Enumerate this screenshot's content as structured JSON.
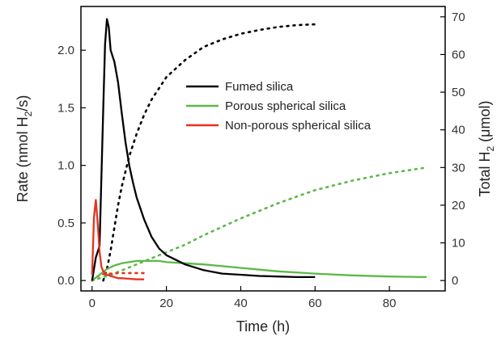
{
  "chart_data": {
    "type": "line",
    "title": "",
    "xlabel": "Time (h)",
    "ylabel_left": {
      "main": "Rate (nmol H",
      "sub": "2",
      "tail": "/s)"
    },
    "ylabel_right": {
      "main": "Total H",
      "sub": "2",
      "tail": " (μmol)"
    },
    "xlim": [
      -3,
      95
    ],
    "ylim_left": [
      -0.09,
      2.38
    ],
    "ylim_right": [
      -2.75,
      72.75
    ],
    "xticks": [
      0,
      20,
      40,
      60,
      80
    ],
    "yticks_left": [
      0.0,
      0.5,
      1.0,
      1.5,
      2.0
    ],
    "yticks_right": [
      0,
      10,
      20,
      30,
      40,
      50,
      60,
      70
    ],
    "grid": false,
    "legend_position": "center",
    "colors": {
      "fumed": "#000000",
      "porous": "#5cb848",
      "nonporous": "#e8321f"
    },
    "series": [
      {
        "name": "Fumed silica",
        "kind": "rate",
        "style": "solid",
        "axis": "left",
        "color": "#000000",
        "x": [
          0,
          1,
          2,
          3,
          3.5,
          4,
          4.5,
          5,
          6,
          7,
          8,
          9,
          10,
          11,
          12,
          14,
          16,
          18,
          20,
          25,
          30,
          35,
          40,
          45,
          50,
          55,
          60
        ],
        "y": [
          0.0,
          0.2,
          0.3,
          1.5,
          2.05,
          2.27,
          2.2,
          2.0,
          1.9,
          1.72,
          1.45,
          1.2,
          1.0,
          0.85,
          0.72,
          0.53,
          0.38,
          0.28,
          0.22,
          0.14,
          0.09,
          0.06,
          0.05,
          0.04,
          0.035,
          0.03,
          0.03
        ]
      },
      {
        "name": "Porous spherical silica",
        "kind": "rate",
        "style": "solid",
        "axis": "left",
        "color": "#5cb848",
        "x": [
          0,
          2,
          4,
          6,
          8,
          10,
          12,
          15,
          18,
          20,
          25,
          30,
          40,
          50,
          60,
          70,
          80,
          90
        ],
        "y": [
          0.0,
          0.05,
          0.1,
          0.13,
          0.15,
          0.16,
          0.17,
          0.17,
          0.17,
          0.16,
          0.15,
          0.14,
          0.11,
          0.08,
          0.06,
          0.045,
          0.035,
          0.03
        ]
      },
      {
        "name": "Non-porous spherical silica",
        "kind": "rate",
        "style": "solid",
        "axis": "left",
        "color": "#e8321f",
        "x": [
          0,
          0.5,
          1,
          1.5,
          2,
          2.5,
          3,
          4,
          5,
          6,
          7,
          8,
          10,
          12,
          14
        ],
        "y": [
          0.05,
          0.55,
          0.7,
          0.5,
          0.25,
          0.12,
          0.08,
          0.05,
          0.04,
          0.03,
          0.02,
          0.02,
          0.015,
          0.01,
          0.01
        ]
      },
      {
        "kind": "total",
        "style": "dotted",
        "axis": "right",
        "color": "#000000",
        "x": [
          3,
          4,
          5,
          6,
          7,
          8,
          9,
          10,
          12,
          14,
          16,
          18,
          20,
          25,
          30,
          35,
          40,
          45,
          50,
          55,
          60
        ],
        "y": [
          0,
          3,
          8,
          14,
          20,
          25,
          29,
          33,
          39,
          44,
          48,
          51,
          54,
          58.5,
          62,
          64,
          65.5,
          66.5,
          67.3,
          67.8,
          68
        ]
      },
      {
        "kind": "total",
        "style": "dotted",
        "axis": "right",
        "color": "#5cb848",
        "x": [
          0,
          5,
          10,
          15,
          20,
          25,
          30,
          40,
          50,
          60,
          70,
          80,
          90
        ],
        "y": [
          0,
          1.5,
          3.5,
          5.5,
          7.5,
          9.5,
          12,
          16.5,
          20.5,
          24,
          26.5,
          28.5,
          30
        ]
      },
      {
        "kind": "total",
        "style": "dotted",
        "axis": "right",
        "color": "#e8321f",
        "x": [
          0,
          1,
          2,
          3,
          4,
          6,
          8,
          10,
          12,
          14
        ],
        "y": [
          0,
          0.8,
          1.4,
          1.7,
          1.8,
          1.9,
          2.0,
          2.0,
          2.0,
          2.0
        ]
      }
    ]
  }
}
